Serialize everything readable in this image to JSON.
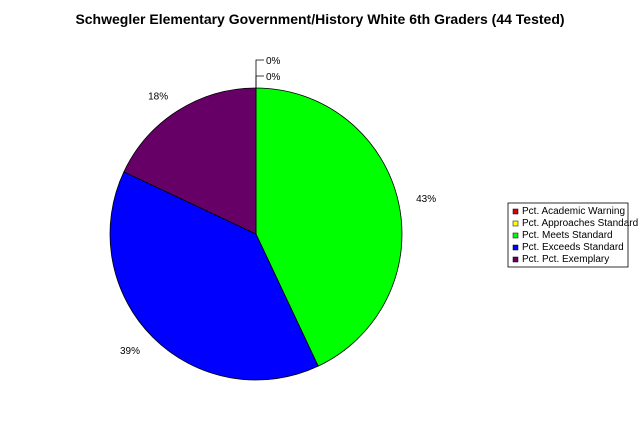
{
  "chart_data": {
    "type": "pie",
    "title": "Schwegler Elementary Government/History White 6th Graders (44 Tested)",
    "slices": [
      {
        "label": "Pct. Academic Warning",
        "value": 0,
        "display": "0%",
        "color": "#dd0000"
      },
      {
        "label": "Pct. Approaches Standard",
        "value": 0,
        "display": "0%",
        "color": "#ffff00"
      },
      {
        "label": "Pct. Meets Standard",
        "value": 43,
        "display": "43%",
        "color": "#00ff00"
      },
      {
        "label": "Pct. Exceeds Standard",
        "value": 39,
        "display": "39%",
        "color": "#0000ff"
      },
      {
        "label": "Pct. Pct. Exemplary",
        "value": 18,
        "display": "18%",
        "color": "#660066"
      }
    ],
    "start": "12 o'clock",
    "direction": "clockwise",
    "legend_position": "right"
  }
}
